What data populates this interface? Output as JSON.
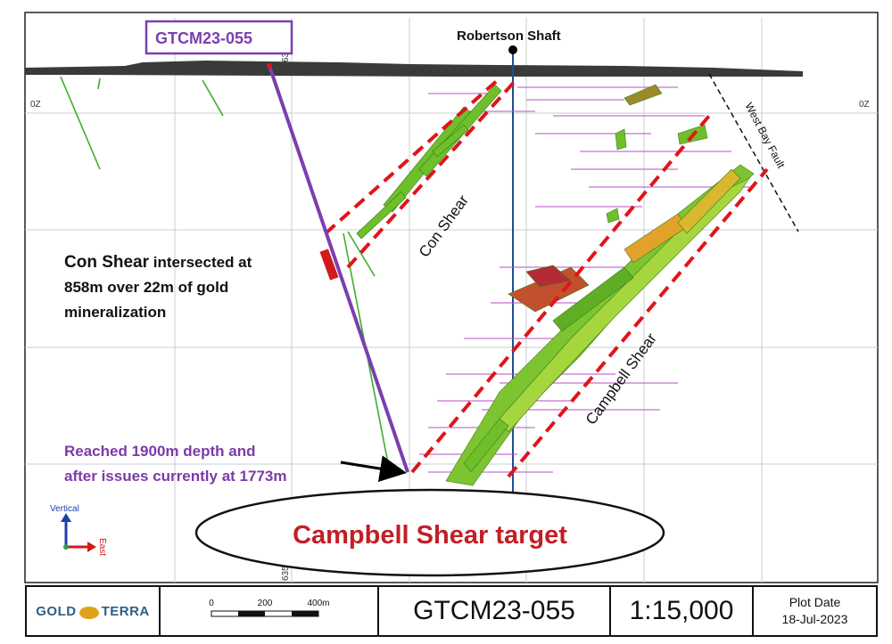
{
  "drill_label": "GTCM23-055",
  "shaft_label": "Robertson Shaft",
  "coord_top": "635,000X",
  "coord_bottom": "635,",
  "elevation_left": "0Z",
  "elevation_right": "0Z",
  "fault_label": "West Bay Fault",
  "con_shear_label": "Con Shear",
  "campbell_shear_label": "Campbell Shear",
  "intercept_note": {
    "line1_bold": "Con Shear",
    "line1_rest": " intersected at",
    "line2": "858m over 22m of gold",
    "line3": "mineralization"
  },
  "depth_note": {
    "line1": "Reached 1900m depth and",
    "line2": "after issues currently at 1773m"
  },
  "target_label": "Campbell Shear target",
  "axes": {
    "vertical": "Vertical",
    "east": "East"
  },
  "title_block": {
    "logo_left": "GOLD",
    "logo_right": "TERRA",
    "scale_ticks": [
      "0",
      "200",
      "400m"
    ],
    "section_name": "GTCM23-055",
    "scale_ratio": "1:15,000",
    "plot_date_label": "Plot Date",
    "plot_date": "18-Jul-2023"
  },
  "colors": {
    "drill_hole": "#7b3fb0",
    "shear_box": "#e0141a",
    "mineralization": "#6fbf2a",
    "target_text": "#c41e25",
    "note_purple": "#7d3aa8"
  }
}
